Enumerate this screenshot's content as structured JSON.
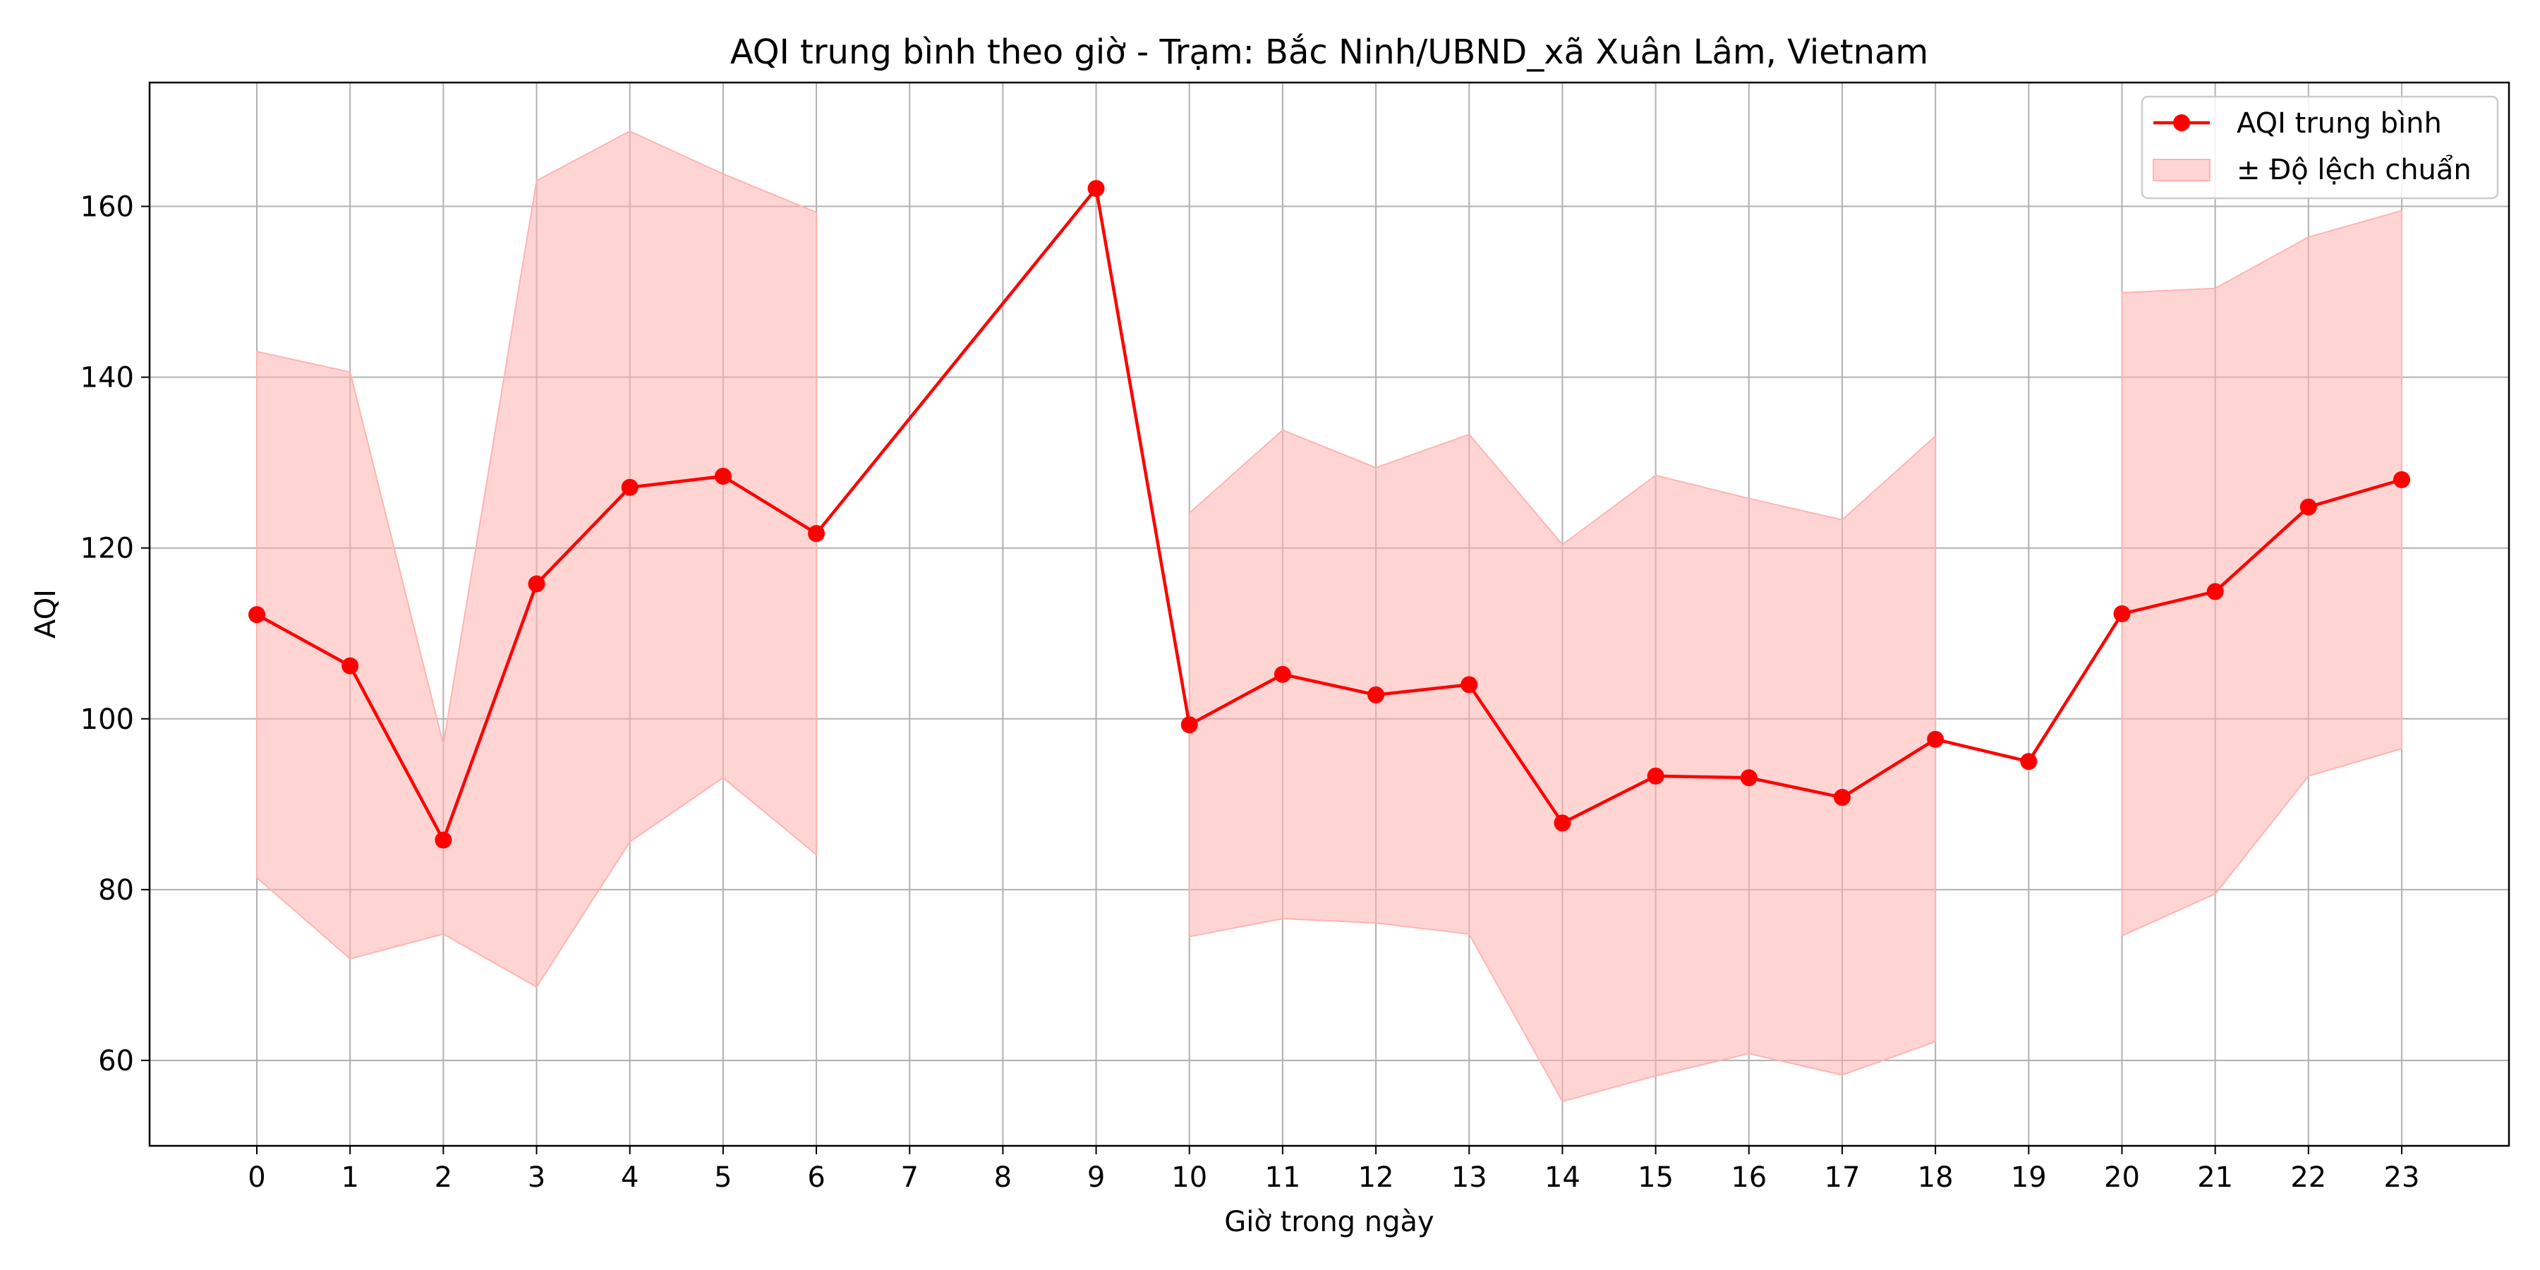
{
  "chart_data": {
    "type": "line",
    "title": "AQI trung bình theo giờ - Trạm: Bắc Ninh/UBND_xã Xuân Lâm, Vietnam",
    "xlabel": "Giờ trong ngày",
    "ylabel": "AQI",
    "x": [
      0,
      1,
      2,
      3,
      4,
      5,
      6,
      9,
      10,
      11,
      12,
      13,
      14,
      15,
      16,
      17,
      18,
      19,
      20,
      21,
      22,
      23
    ],
    "x_ticks": [
      0,
      1,
      2,
      3,
      4,
      5,
      6,
      7,
      8,
      9,
      10,
      11,
      12,
      13,
      14,
      15,
      16,
      17,
      18,
      19,
      20,
      21,
      22,
      23
    ],
    "y_ticks": [
      60,
      80,
      100,
      120,
      140,
      160
    ],
    "xlim": [
      -1.15,
      24.15
    ],
    "ylim": [
      50,
      174.5
    ],
    "grid": true,
    "legend_position": "top-right",
    "series": [
      {
        "name": "AQI trung bình",
        "color": "#ff0000",
        "marker": "circle",
        "values": [
          112.2,
          106.2,
          85.8,
          115.8,
          127.1,
          128.4,
          121.7,
          162.1,
          99.3,
          105.2,
          102.8,
          104.0,
          87.8,
          93.3,
          93.1,
          90.8,
          97.6,
          95.0,
          112.3,
          114.9,
          124.8,
          128.0
        ]
      }
    ],
    "bands": [
      {
        "name": "± Độ lệch chuẩn",
        "color": "#ffb3b0",
        "segments": [
          {
            "x": [
              0,
              1,
              2,
              3,
              4,
              5,
              6
            ],
            "upper": [
              143.0,
              140.6,
              97.0,
              163.0,
              168.8,
              163.8,
              159.3
            ],
            "lower": [
              81.4,
              71.9,
              74.8,
              68.6,
              85.6,
              93.1,
              84.1
            ]
          },
          {
            "x": [
              10,
              11,
              12,
              13,
              14,
              15,
              16,
              17,
              18
            ],
            "upper": [
              124.1,
              133.8,
              129.4,
              133.3,
              120.4,
              128.5,
              125.8,
              123.3,
              133.1
            ],
            "lower": [
              74.5,
              76.6,
              76.1,
              74.8,
              55.2,
              58.2,
              60.8,
              58.3,
              62.2
            ]
          },
          {
            "x": [
              20,
              21,
              22,
              23
            ],
            "upper": [
              149.9,
              150.4,
              156.4,
              159.5
            ],
            "lower": [
              74.6,
              79.5,
              93.3,
              96.5
            ]
          }
        ]
      }
    ]
  }
}
